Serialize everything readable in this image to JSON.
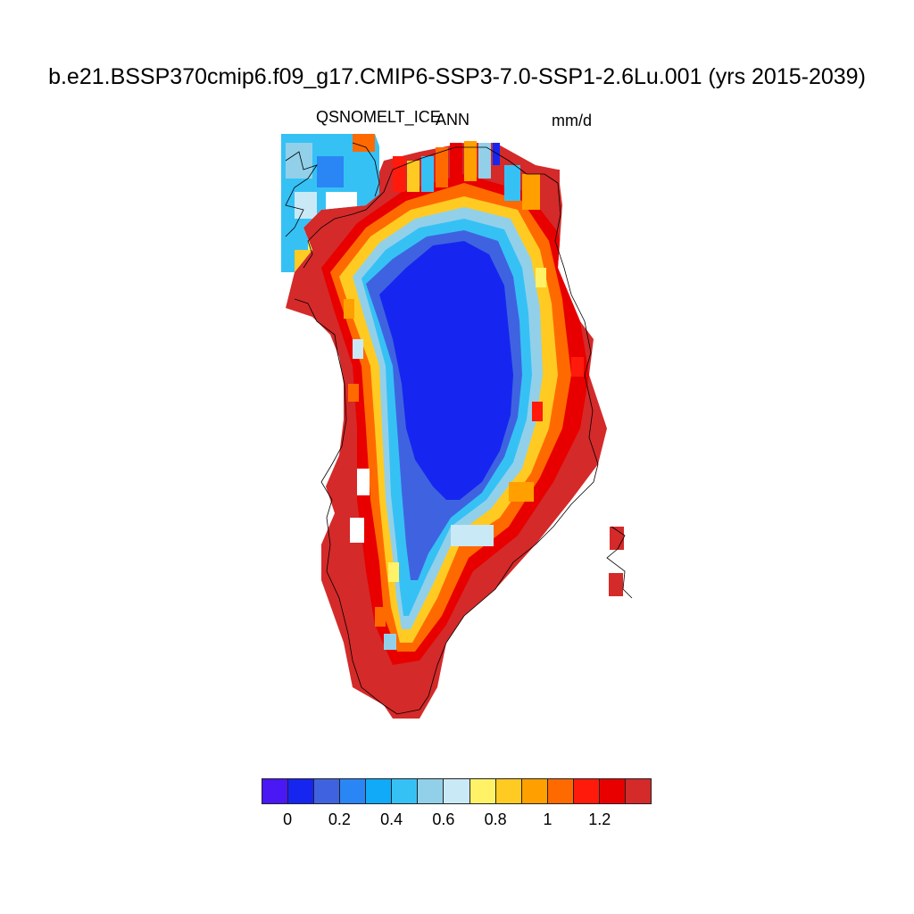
{
  "figure": {
    "title": "b.e21.BSSP370cmip6.f09_g17.CMIP6-SSP3-7.0-SSP1-2.6Lu.001 (yrs 2015-2039)",
    "variable": "QSNOMELT_ICE",
    "season": "ANN",
    "units": "mm/d"
  },
  "map": {
    "region": "Greenland",
    "projection": "polar stereographic",
    "field": "ice-sheet snowmelt rate; low values (~0.1 mm/d) in interior, high values (>1.3 mm/d) around margins"
  },
  "colorbar": {
    "colors": [
      "#4a17f5",
      "#1626f0",
      "#3f63e0",
      "#2a86f5",
      "#10aaf8",
      "#36c1f5",
      "#92d0ea",
      "#cae9f6",
      "#fff266",
      "#ffcb22",
      "#ffa000",
      "#ff6a00",
      "#ff1a0b",
      "#e80000",
      "#d42a2a"
    ],
    "tick_labels": [
      "0",
      "0.2",
      "0.4",
      "0.6",
      "0.8",
      "1",
      "1.2"
    ]
  }
}
